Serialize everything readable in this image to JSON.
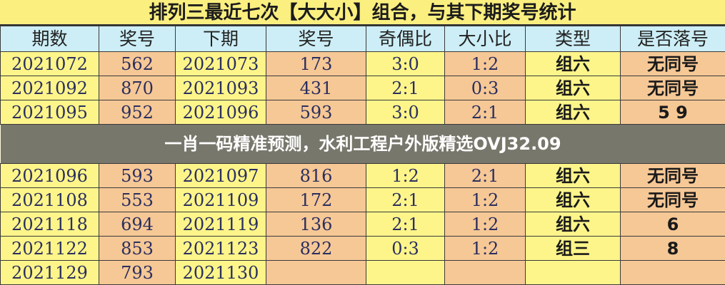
{
  "title": "排列三最近七次【大大小】组合，与其下期奖号统计",
  "headers": [
    "期数",
    "奖号",
    "下期",
    "奖号",
    "奇偶比",
    "大小比",
    "类型",
    "是否落号"
  ],
  "rows": [
    [
      "2021072",
      "562",
      "2021073",
      "173",
      "3:0",
      "1:2",
      "组六",
      "无同号"
    ],
    [
      "2021092",
      "870",
      "2021093",
      "431",
      "2:1",
      "0:3",
      "组六",
      "无同号"
    ],
    [
      "2021095",
      "952",
      "2021096",
      "593",
      "3:0",
      "2:1",
      "组六",
      "5 9"
    ],
    [
      "2021096",
      "593",
      "2021097",
      "816",
      "1:2",
      "2:1",
      "组六",
      "无同号"
    ],
    [
      "2021108",
      "553",
      "2021109",
      "172",
      "2:1",
      "1:2",
      "组六",
      "无同号"
    ],
    [
      "2021118",
      "694",
      "2021119",
      "136",
      "2:1",
      "1:2",
      "组六",
      "6"
    ],
    [
      "2021122",
      "853",
      "2021123",
      "822",
      "0:3",
      "1:2",
      "组三",
      "8"
    ],
    [
      "2021129",
      "793",
      "2021130",
      "",
      "",
      "",
      "",
      ""
    ]
  ],
  "banner": "一肖一码精准预测，水利工程户外版精选OVJ32.09",
  "colors": {
    "title_bg": "#fbef80",
    "header_bg": "#cdeef6",
    "yellow_cell": "#fdf58a",
    "orange_cell": "#f6c896"
  }
}
